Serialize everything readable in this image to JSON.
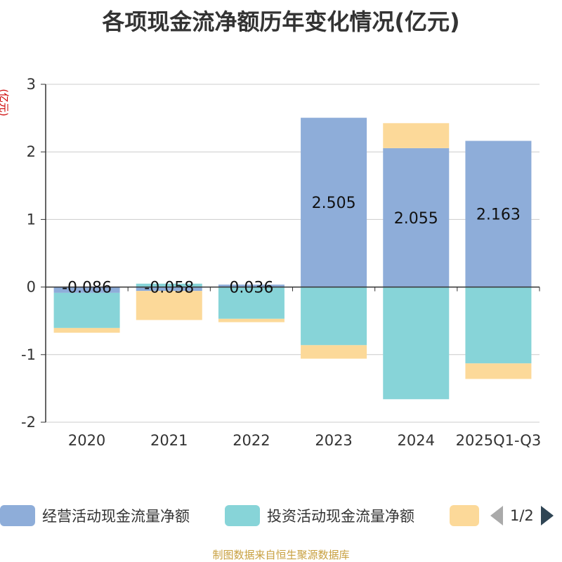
{
  "chart_data": {
    "type": "bar",
    "stacked": true,
    "title": "各项现金流净额历年变化情况(亿元)",
    "ylabel": "(亿元)",
    "ylim": [
      -2,
      3
    ],
    "yticks": [
      3,
      2,
      1,
      0,
      -1,
      -2
    ],
    "grid": true,
    "categories": [
      "2020",
      "2021",
      "2022",
      "2023",
      "2024",
      "2025Q1-Q3"
    ],
    "series": [
      {
        "name": "经营活动现金流量净额",
        "color": "#8eadd9",
        "values": [
          -0.086,
          -0.058,
          0.036,
          2.505,
          2.055,
          2.163
        ],
        "labels": [
          "-0.086",
          "-0.058",
          "0.036",
          "2.505",
          "2.055",
          "2.163"
        ]
      },
      {
        "name": "投资活动现金流量净额",
        "color": "#87d4d8",
        "values": [
          -0.52,
          0.05,
          -0.47,
          -0.86,
          -1.66,
          -1.13
        ]
      },
      {
        "name": "",
        "color": "#fcd999",
        "values": [
          -0.07,
          -0.43,
          -0.05,
          -0.2,
          0.37,
          -0.23
        ]
      }
    ],
    "legend": {
      "placement": "bottom",
      "page": "1/2"
    }
  },
  "source": "制图数据来自恒生聚源数据库"
}
